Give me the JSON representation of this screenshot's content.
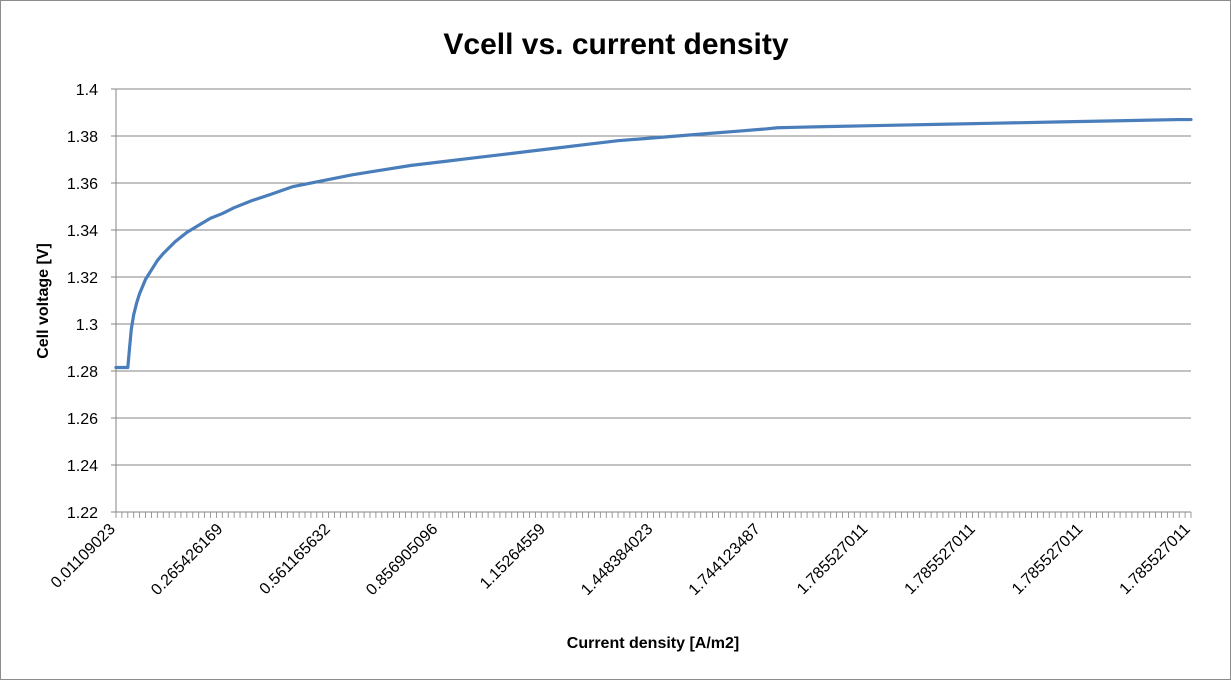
{
  "chart_data": {
    "type": "line",
    "title": "Vcell vs. current density",
    "xlabel": "Current density [A/m2]",
    "ylabel": "Cell voltage [V]",
    "ylim": [
      1.22,
      1.4
    ],
    "yticks": [
      "1.22",
      "1.24",
      "1.26",
      "1.28",
      "1.3",
      "1.32",
      "1.34",
      "1.36",
      "1.38",
      "1.4"
    ],
    "x_tick_labels": [
      "0.01109023",
      "0.265426169",
      "0.561165632",
      "0.856905096",
      "1.15264559",
      "1.448384023",
      "1.744123487",
      "1.785527011",
      "1.785527011",
      "1.785527011",
      "1.785527011"
    ],
    "grid": true,
    "legend": "none",
    "series": [
      {
        "color": "#4a7ebb",
        "points": [
          [
            0,
            1.2815
          ],
          [
            0.5,
            1.2815
          ],
          [
            1.5,
            1.2815
          ],
          [
            2.0,
            1.2815
          ],
          [
            2.3,
            1.29
          ],
          [
            2.6,
            1.298
          ],
          [
            3.0,
            1.304
          ],
          [
            3.5,
            1.309
          ],
          [
            4.0,
            1.313
          ],
          [
            5.0,
            1.319
          ],
          [
            6.0,
            1.323
          ],
          [
            7.0,
            1.327
          ],
          [
            8.0,
            1.33
          ],
          [
            10.0,
            1.335
          ],
          [
            12.0,
            1.339
          ],
          [
            14.0,
            1.342
          ],
          [
            16.0,
            1.345
          ],
          [
            18.0,
            1.347
          ],
          [
            20.0,
            1.3495
          ],
          [
            23.0,
            1.3525
          ],
          [
            26.0,
            1.355
          ],
          [
            30.0,
            1.3585
          ],
          [
            35.0,
            1.361
          ],
          [
            40.0,
            1.3635
          ],
          [
            45.0,
            1.3655
          ],
          [
            50.0,
            1.3675
          ],
          [
            55.0,
            1.369
          ],
          [
            60.0,
            1.3705
          ],
          [
            65.0,
            1.372
          ],
          [
            70.0,
            1.3735
          ],
          [
            75.0,
            1.375
          ],
          [
            80.0,
            1.3765
          ],
          [
            85.0,
            1.378
          ],
          [
            90.0,
            1.379
          ],
          [
            95.0,
            1.38
          ],
          [
            100.0,
            1.381
          ],
          [
            105.0,
            1.382
          ],
          [
            110.0,
            1.383
          ],
          [
            112.0,
            1.3835
          ],
          [
            115.0,
            1.3837
          ],
          [
            120.0,
            1.384
          ],
          [
            130.0,
            1.3845
          ],
          [
            140.0,
            1.385
          ],
          [
            150.0,
            1.3855
          ],
          [
            160.0,
            1.386
          ],
          [
            170.0,
            1.3865
          ],
          [
            180.0,
            1.387
          ],
          [
            182.0,
            1.387
          ]
        ]
      }
    ]
  }
}
